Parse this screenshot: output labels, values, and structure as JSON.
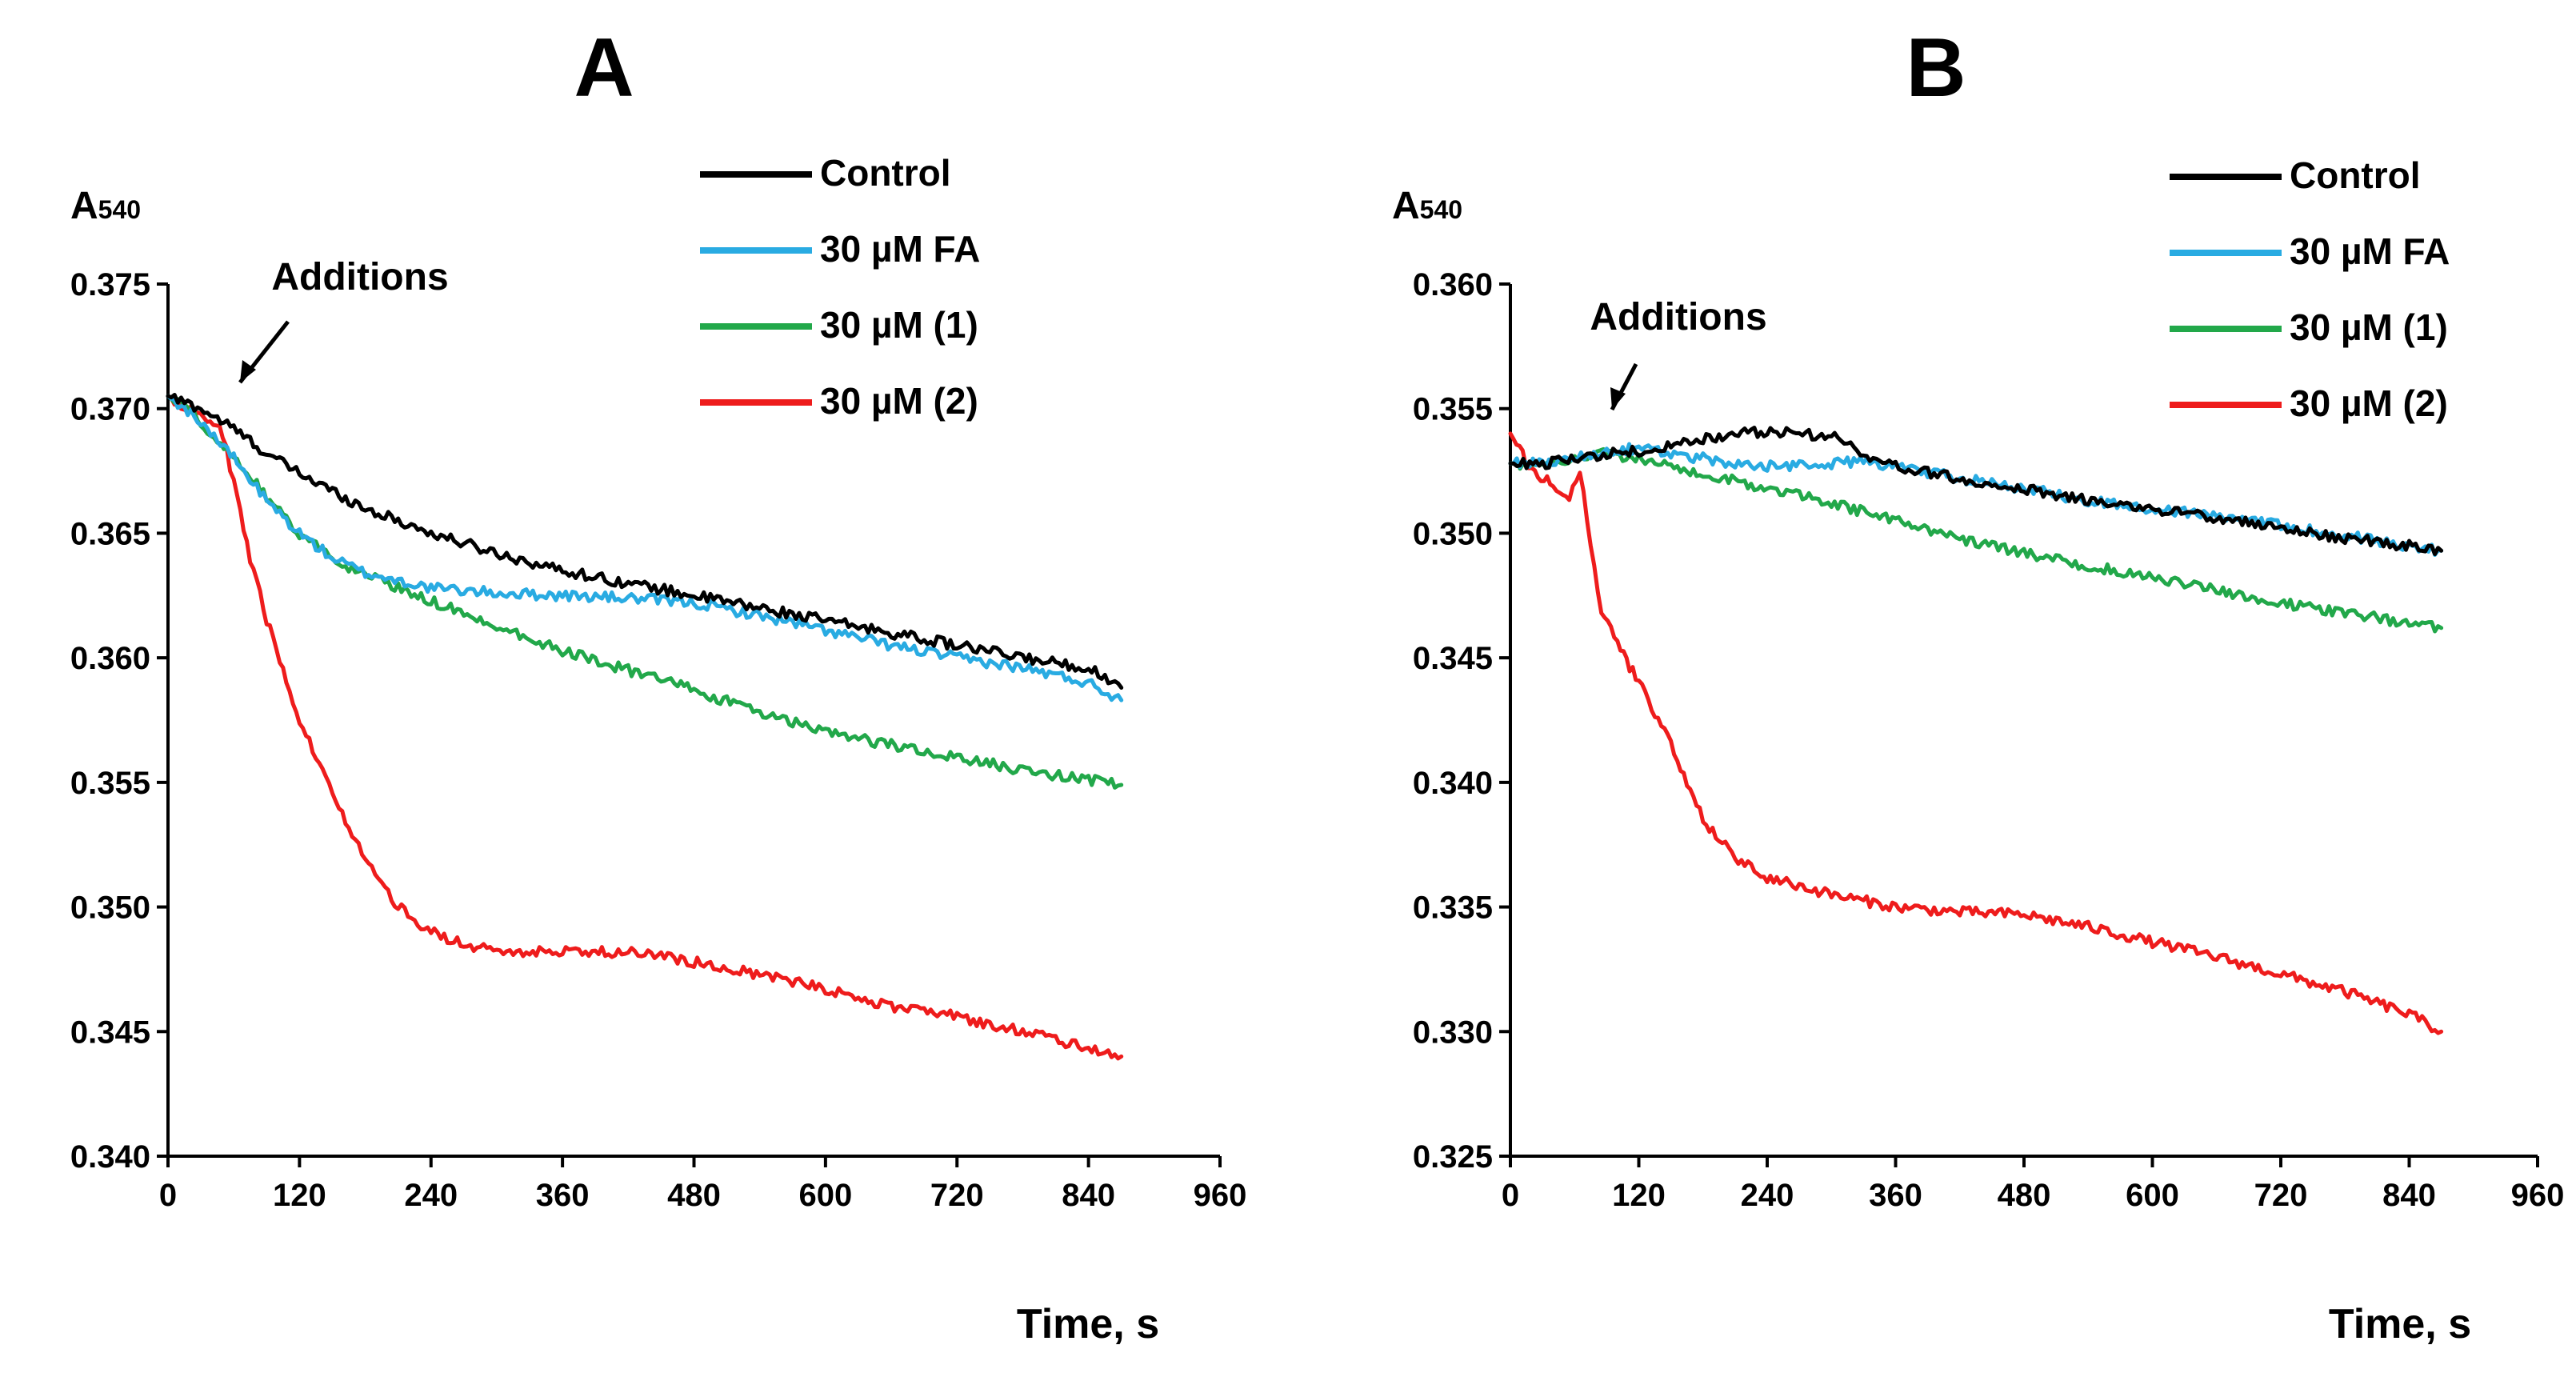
{
  "chart_data": [
    {
      "type": "line",
      "panel_label": "A",
      "ylabel_main": "A",
      "ylabel_sub": "540",
      "xlabel": "Time, s",
      "xlim": [
        0,
        960
      ],
      "ylim": [
        0.34,
        0.375
      ],
      "xticks": [
        0,
        120,
        240,
        360,
        480,
        600,
        720,
        840,
        960
      ],
      "yticks": [
        0.34,
        0.345,
        0.35,
        0.355,
        0.36,
        0.365,
        0.37,
        0.375
      ],
      "ytick_labels": [
        "0.340",
        "0.345",
        "0.350",
        "0.355",
        "0.360",
        "0.365",
        "0.370",
        "0.375"
      ],
      "annotation": {
        "text": "Additions",
        "x": 60,
        "y": 0.3694
      },
      "legend": [
        "Control",
        "30 µM FA",
        "30 µM (1)",
        "30 µM (2)"
      ],
      "series": [
        {
          "name": "Control",
          "color": "#000000",
          "x": [
            0,
            30,
            60,
            90,
            120,
            150,
            180,
            240,
            300,
            360,
            420,
            480,
            540,
            600,
            660,
            720,
            780,
            840,
            870
          ],
          "y": [
            0.3705,
            0.37,
            0.3692,
            0.3682,
            0.3674,
            0.3667,
            0.366,
            0.365,
            0.3642,
            0.3635,
            0.363,
            0.3625,
            0.362,
            0.3615,
            0.361,
            0.3605,
            0.36,
            0.3596,
            0.3588
          ]
        },
        {
          "name": "30 µM FA",
          "color": "#29abe2",
          "x": [
            0,
            30,
            60,
            90,
            120,
            150,
            180,
            240,
            300,
            360,
            420,
            480,
            540,
            600,
            660,
            720,
            780,
            840,
            870
          ],
          "y": [
            0.3705,
            0.3695,
            0.368,
            0.3663,
            0.365,
            0.364,
            0.3634,
            0.3628,
            0.3626,
            0.3625,
            0.3624,
            0.3622,
            0.3617,
            0.3611,
            0.3605,
            0.36,
            0.3596,
            0.359,
            0.3583
          ]
        },
        {
          "name": "30 µM (1)",
          "color": "#22a84a",
          "x": [
            0,
            30,
            60,
            90,
            120,
            150,
            180,
            240,
            300,
            360,
            420,
            480,
            540,
            600,
            660,
            720,
            780,
            840,
            870
          ],
          "y": [
            0.3705,
            0.3695,
            0.368,
            0.3665,
            0.365,
            0.364,
            0.3633,
            0.3623,
            0.3613,
            0.3603,
            0.3595,
            0.3587,
            0.3578,
            0.357,
            0.3565,
            0.356,
            0.3555,
            0.3551,
            0.3549
          ]
        },
        {
          "name": "30 µM (2)",
          "color": "#ee1c1c",
          "x": [
            0,
            30,
            50,
            60,
            75,
            90,
            105,
            120,
            150,
            180,
            210,
            240,
            270,
            300,
            360,
            420,
            480,
            540,
            600,
            660,
            720,
            780,
            840,
            870
          ],
          "y": [
            0.3705,
            0.3697,
            0.369,
            0.367,
            0.364,
            0.3615,
            0.3595,
            0.3575,
            0.3545,
            0.352,
            0.35,
            0.349,
            0.3485,
            0.3482,
            0.3482,
            0.3482,
            0.3478,
            0.3473,
            0.3467,
            0.346,
            0.3456,
            0.345,
            0.3443,
            0.344
          ]
        }
      ]
    },
    {
      "type": "line",
      "panel_label": "B",
      "ylabel_main": "A",
      "ylabel_sub": "540",
      "xlabel": "Time, s",
      "xlim": [
        0,
        960
      ],
      "ylim": [
        0.325,
        0.36
      ],
      "xticks": [
        0,
        120,
        240,
        360,
        480,
        600,
        720,
        840,
        960
      ],
      "yticks": [
        0.325,
        0.33,
        0.335,
        0.34,
        0.345,
        0.35,
        0.355,
        0.36
      ],
      "ytick_labels": [
        "0.325",
        "0.330",
        "0.335",
        "0.340",
        "0.345",
        "0.350",
        "0.355",
        "0.360"
      ],
      "annotation": {
        "text": "Additions",
        "x": 90,
        "y": 0.3537
      },
      "legend": [
        "Control",
        "30 µM FA",
        "30 µM (1)",
        "30 µM (2)"
      ],
      "series": [
        {
          "name": "Control",
          "color": "#000000",
          "x": [
            0,
            30,
            60,
            90,
            120,
            150,
            180,
            210,
            240,
            270,
            300,
            330,
            360,
            420,
            480,
            540,
            600,
            660,
            720,
            780,
            840,
            870
          ],
          "y": [
            0.3528,
            0.3528,
            0.353,
            0.3532,
            0.3533,
            0.3535,
            0.3538,
            0.354,
            0.3541,
            0.354,
            0.3539,
            0.3532,
            0.3527,
            0.3522,
            0.3518,
            0.3513,
            0.351,
            0.3506,
            0.3502,
            0.3498,
            0.3495,
            0.3493
          ]
        },
        {
          "name": "30 µM FA",
          "color": "#29abe2",
          "x": [
            0,
            30,
            60,
            90,
            120,
            150,
            180,
            210,
            240,
            270,
            300,
            330,
            360,
            420,
            480,
            540,
            600,
            660,
            720,
            780,
            840,
            870
          ],
          "y": [
            0.3528,
            0.3528,
            0.353,
            0.3533,
            0.3534,
            0.3532,
            0.353,
            0.3528,
            0.3527,
            0.3527,
            0.3528,
            0.3529,
            0.3527,
            0.3522,
            0.3518,
            0.3513,
            0.351,
            0.3507,
            0.3503,
            0.3499,
            0.3495,
            0.3493
          ]
        },
        {
          "name": "30 µM (1)",
          "color": "#22a84a",
          "x": [
            0,
            30,
            60,
            90,
            120,
            150,
            180,
            240,
            300,
            360,
            420,
            480,
            540,
            600,
            660,
            720,
            780,
            840,
            870
          ],
          "y": [
            0.3528,
            0.3528,
            0.353,
            0.3532,
            0.353,
            0.3527,
            0.3524,
            0.3518,
            0.3512,
            0.3505,
            0.3498,
            0.3492,
            0.3487,
            0.3482,
            0.3477,
            0.3472,
            0.3468,
            0.3464,
            0.3462
          ]
        },
        {
          "name": "30 µM (2)",
          "color": "#ee1c1c",
          "x": [
            0,
            20,
            40,
            55,
            65,
            75,
            85,
            100,
            120,
            150,
            180,
            210,
            240,
            300,
            360,
            420,
            480,
            540,
            600,
            660,
            720,
            780,
            840,
            870
          ],
          "y": [
            0.354,
            0.3525,
            0.352,
            0.3515,
            0.3525,
            0.3495,
            0.347,
            0.3455,
            0.344,
            0.3415,
            0.3385,
            0.337,
            0.3362,
            0.3355,
            0.335,
            0.3348,
            0.3347,
            0.3342,
            0.3336,
            0.333,
            0.3323,
            0.3316,
            0.3307,
            0.33
          ]
        }
      ]
    }
  ]
}
